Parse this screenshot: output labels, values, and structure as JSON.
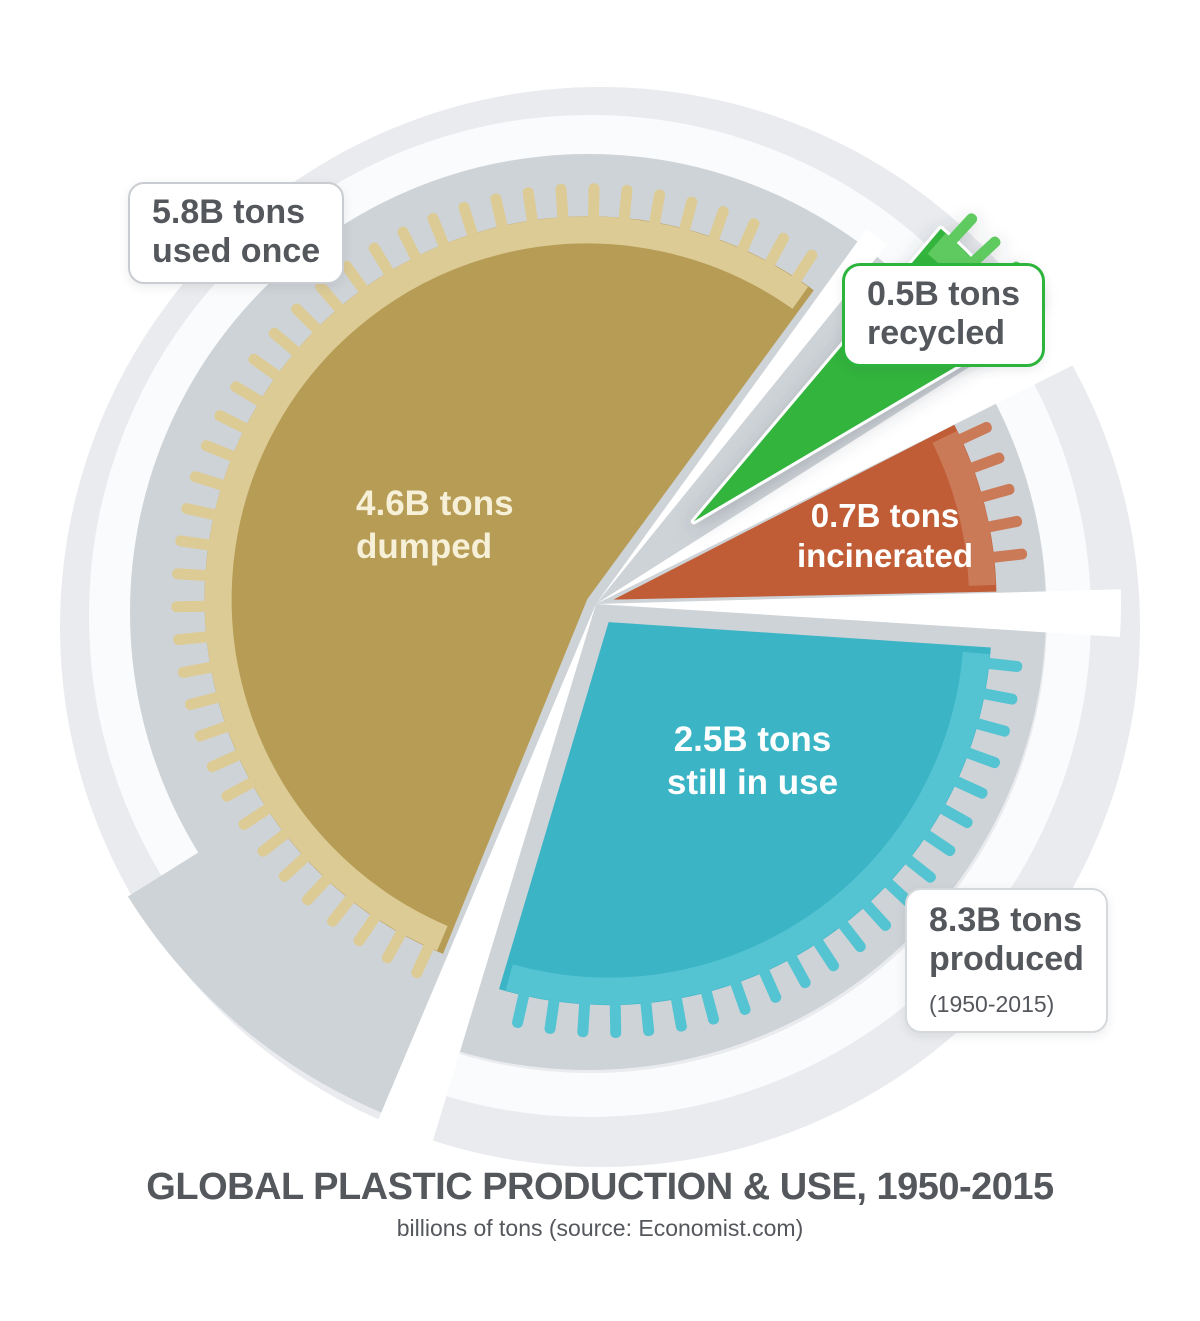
{
  "chart_data": {
    "type": "pie",
    "title": "GLOBAL PLASTIC PRODUCTION & USE, 1950-2015",
    "subtitle": "billions of tons (source: Economist.com)",
    "unit": "billions of tons",
    "source": "Economist.com",
    "period": "1950-2015",
    "total": {
      "value": 8.3,
      "label": "8.3B tons produced (1950-2015)"
    },
    "slices": [
      {
        "id": "dumped",
        "value": 4.6,
        "label": "4.6B tons dumped",
        "line1": "4.6B tons",
        "line2": "dumped",
        "color": "#b69c55",
        "rim_color": "#ddcb96",
        "label_color": "#f7f0d8"
      },
      {
        "id": "recycled",
        "value": 0.5,
        "label": "0.5B tons recycled",
        "line1": "0.5B tons",
        "line2": "recycled",
        "color": "#33b43e",
        "rim_color": "#5fca5f",
        "label_color": "#54575c"
      },
      {
        "id": "incinerated",
        "value": 0.7,
        "label": "0.7B tons incinerated",
        "line1": "0.7B tons",
        "line2": "incinerated",
        "color": "#c05d36",
        "rim_color": "#cb7a57",
        "label_color": "#ffffff"
      },
      {
        "id": "still_in_use",
        "value": 2.5,
        "label": "2.5B tons still in use",
        "line1": "2.5B tons",
        "line2": "still in use",
        "color": "#3bb4c5",
        "rim_color": "#54c4d2",
        "label_color": "#ffffff"
      }
    ],
    "callouts": {
      "used_once": {
        "line1": "5.8B tons",
        "line2": "used once",
        "value": 5.8
      },
      "recycled": {
        "line1": "0.5B tons",
        "line2": "recycled",
        "value": 0.5
      },
      "produced": {
        "line1": "8.3B tons",
        "line2": "produced",
        "line3": "(1950-2015)",
        "value": 8.3
      }
    },
    "colors": {
      "page_bg": "#ffffff",
      "plate_outer": "#e9ebee",
      "plate_ring": "#fafbfc",
      "plate_inner": "#ced3d7",
      "gap_white": "#ffffff",
      "text_dark": "#54575c",
      "callout_border": "#c9cdd1",
      "recycled_border": "#2db43c"
    },
    "legend_position": "none",
    "grid": false
  }
}
